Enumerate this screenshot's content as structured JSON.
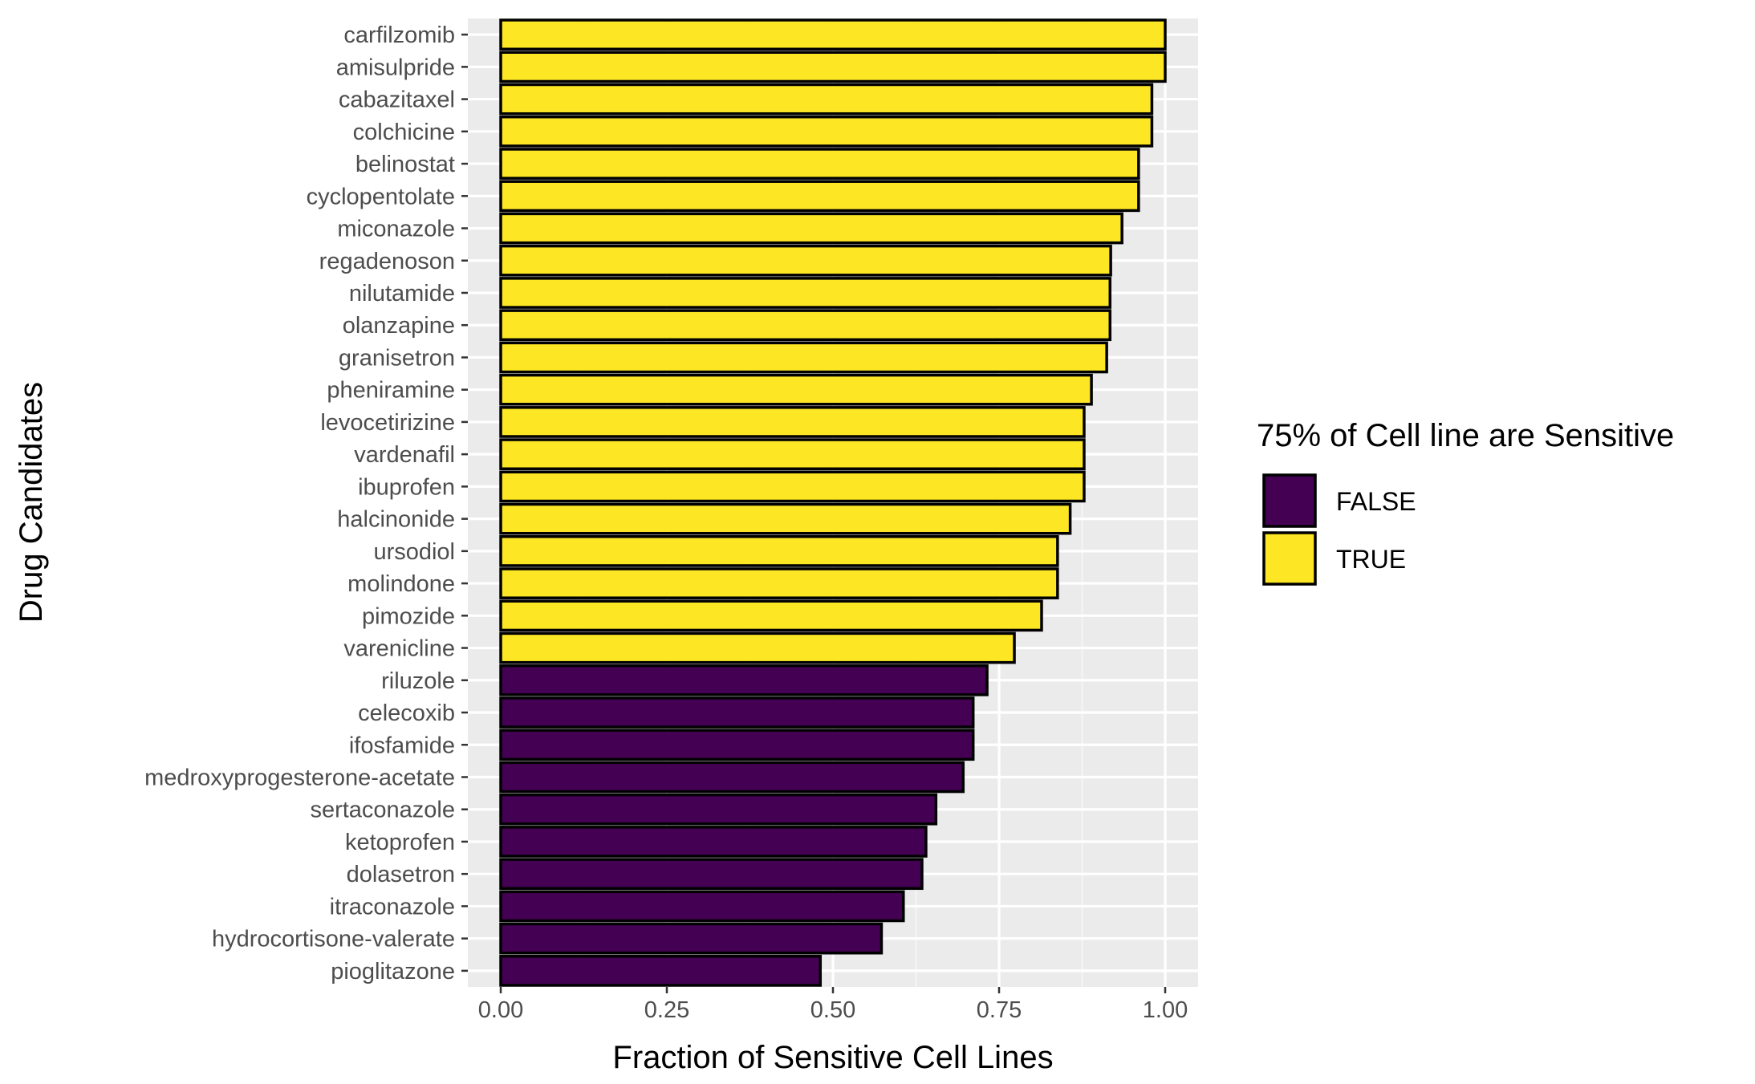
{
  "chart_data": {
    "type": "bar",
    "orientation": "horizontal",
    "xlabel": "Fraction of Sensitive Cell Lines",
    "ylabel": "Drug Candidates",
    "xlim": [
      0,
      1.0
    ],
    "x_ticks": [
      "0.00",
      "0.25",
      "0.50",
      "0.75",
      "1.00"
    ],
    "grid": true,
    "legend": {
      "title": "75% of Cell line are Sensitive",
      "position": "right",
      "entries": [
        {
          "label": "FALSE",
          "color": "#440154"
        },
        {
          "label": "TRUE",
          "color": "#FDE725"
        }
      ]
    },
    "categories": [
      "carfilzomib",
      "amisulpride",
      "cabazitaxel",
      "colchicine",
      "belinostat",
      "cyclopentolate",
      "miconazole",
      "regadenoson",
      "nilutamide",
      "olanzapine",
      "granisetron",
      "pheniramine",
      "levocetirizine",
      "vardenafil",
      "ibuprofen",
      "halcinonide",
      "ursodiol",
      "molindone",
      "pimozide",
      "varenicline",
      "riluzole",
      "celecoxib",
      "ifosfamide",
      "medroxyprogesterone-acetate",
      "sertaconazole",
      "ketoprofen",
      "dolasetron",
      "itraconazole",
      "hydrocortisone-valerate",
      "pioglitazone"
    ],
    "values": [
      1.0,
      1.0,
      0.98,
      0.98,
      0.96,
      0.96,
      0.935,
      0.918,
      0.917,
      0.917,
      0.912,
      0.889,
      0.878,
      0.878,
      0.878,
      0.857,
      0.838,
      0.838,
      0.814,
      0.773,
      0.732,
      0.711,
      0.711,
      0.696,
      0.655,
      0.64,
      0.634,
      0.606,
      0.573,
      0.481
    ],
    "sensitive": [
      "TRUE",
      "TRUE",
      "TRUE",
      "TRUE",
      "TRUE",
      "TRUE",
      "TRUE",
      "TRUE",
      "TRUE",
      "TRUE",
      "TRUE",
      "TRUE",
      "TRUE",
      "TRUE",
      "TRUE",
      "TRUE",
      "TRUE",
      "TRUE",
      "TRUE",
      "TRUE",
      "FALSE",
      "FALSE",
      "FALSE",
      "FALSE",
      "FALSE",
      "FALSE",
      "FALSE",
      "FALSE",
      "FALSE",
      "FALSE"
    ],
    "colors": {
      "panel_background": "#EBEBEB",
      "grid_major": "#FFFFFF",
      "bar_outline": "#000000"
    }
  }
}
